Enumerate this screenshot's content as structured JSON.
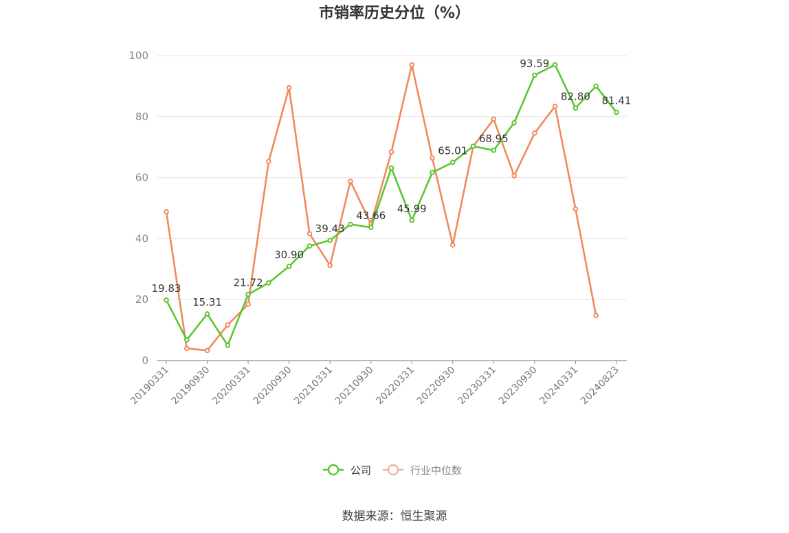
{
  "chart_data": {
    "type": "line",
    "title": "市销率历史分位（%）",
    "ylim": [
      0,
      100
    ],
    "yticks": [
      0,
      20,
      40,
      60,
      80,
      100
    ],
    "x_labels": [
      "20190331",
      "20190930",
      "20200331",
      "20200930",
      "20210331",
      "20210930",
      "20220331",
      "20220930",
      "20230331",
      "20230930",
      "20240331",
      "20240823"
    ],
    "label_every": 2,
    "grid": true,
    "legend_position": "bottom",
    "series": [
      {
        "name": "公司",
        "color": "#5cc530",
        "values": [
          19.83,
          6.8,
          15.31,
          5.0,
          21.72,
          25.5,
          30.9,
          37.6,
          39.43,
          44.7,
          43.66,
          63.2,
          45.99,
          61.7,
          65.01,
          70.3,
          68.95,
          78.0,
          93.59,
          97.0,
          82.8,
          90.0,
          81.41
        ],
        "labels": [
          "19.83",
          null,
          "15.31",
          null,
          "21.72",
          null,
          "30.90",
          null,
          "39.43",
          null,
          "43.66",
          null,
          "45.99",
          null,
          "65.01",
          null,
          "68.95",
          null,
          "93.59",
          null,
          "82.80",
          null,
          "81.41"
        ]
      },
      {
        "name": "行业中位数",
        "color": "#f08a5d",
        "values": [
          48.8,
          4.0,
          3.3,
          11.7,
          18.5,
          65.3,
          89.5,
          41.6,
          31.2,
          58.8,
          44.8,
          68.4,
          97.0,
          66.4,
          37.9,
          70.2,
          79.2,
          60.6,
          74.6,
          83.4,
          49.7,
          14.8,
          null
        ]
      }
    ]
  },
  "legend": {
    "items": [
      {
        "label": "公司",
        "color": "#5cc530",
        "text_color": "#333333"
      },
      {
        "label": "行业中位数",
        "color": "#f5b49a",
        "text_color": "#888888"
      }
    ]
  },
  "source": "数据来源：恒生聚源"
}
